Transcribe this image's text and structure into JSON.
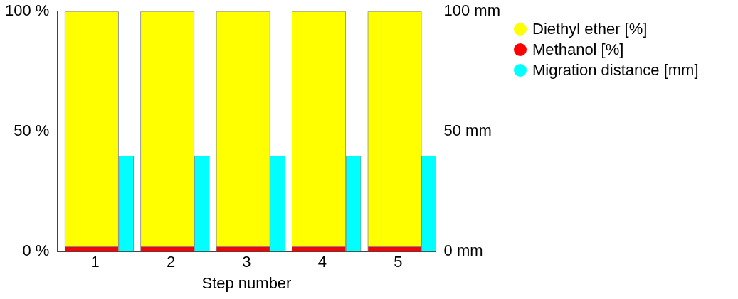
{
  "chart_data": {
    "type": "bar",
    "stacked": true,
    "xlabel": "Step number",
    "categories": [
      "1",
      "2",
      "3",
      "4",
      "5"
    ],
    "series": [
      {
        "name": "Methanol [%]",
        "color": "#ff0000",
        "values": [
          2,
          2,
          2,
          2,
          2
        ]
      },
      {
        "name": "Diethyl ether [%]",
        "color": "#ffff00",
        "values": [
          98,
          98,
          98,
          98,
          98
        ]
      },
      {
        "name": "Migration distance [mm]",
        "color": "#00ffff",
        "values": [
          40,
          40,
          40,
          40,
          40
        ],
        "axis": "y2"
      }
    ],
    "ylim": [
      0,
      100
    ],
    "yticks": [
      {
        "value": 0,
        "label": "0 %"
      },
      {
        "value": 50,
        "label": "50 %"
      },
      {
        "value": 100,
        "label": "100 %"
      }
    ],
    "y2lim": [
      0,
      100
    ],
    "y2ticks": [
      {
        "value": 0,
        "label": "0 mm"
      },
      {
        "value": 50,
        "label": "50 mm"
      },
      {
        "value": 100,
        "label": "100 mm"
      }
    ],
    "grid": false,
    "legend": "right"
  }
}
